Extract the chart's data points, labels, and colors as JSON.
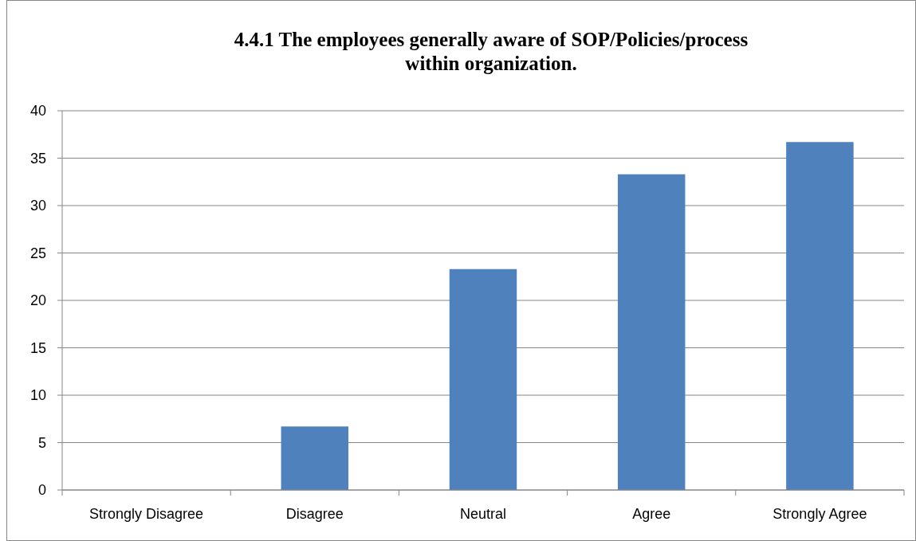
{
  "chart_data": {
    "type": "bar",
    "title": "4.4.1 The employees generally aware of SOP/Policies/process\nwithin organization.",
    "categories": [
      "Strongly Disagree",
      "Disagree",
      "Neutral",
      "Agree",
      "Strongly Agree"
    ],
    "values": [
      0,
      6.7,
      23.3,
      33.3,
      36.7
    ],
    "color": "#4f81bd",
    "ylim": [
      0,
      40
    ],
    "yticks": [
      0,
      5,
      10,
      15,
      20,
      25,
      30,
      35,
      40
    ],
    "grid": "y"
  }
}
